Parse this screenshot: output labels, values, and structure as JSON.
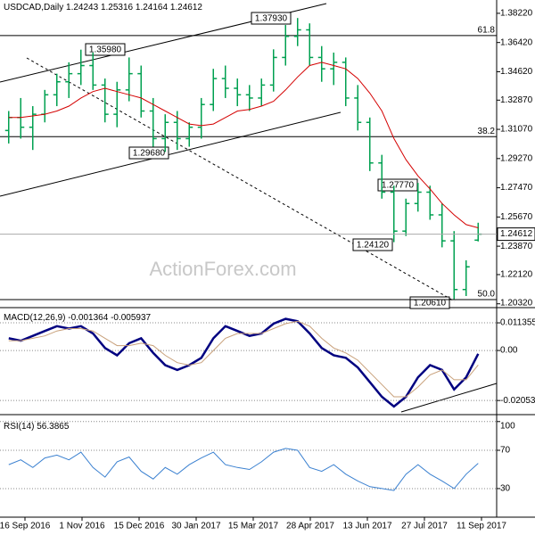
{
  "chart_data": [
    {
      "type": "ohlc",
      "title": "USDCAD,Daily",
      "color": "#00a050",
      "open": [
        1.31,
        1.318,
        1.312,
        1.32,
        1.332,
        1.34,
        1.345,
        1.35,
        1.338,
        1.32,
        1.335,
        1.345,
        1.322,
        1.305,
        1.315,
        1.305,
        1.312,
        1.326,
        1.342,
        1.336,
        1.332,
        1.33,
        1.338,
        1.355,
        1.368,
        1.372,
        1.355,
        1.348,
        1.352,
        1.33,
        1.315,
        1.29,
        1.272,
        1.248,
        1.265,
        1.272,
        1.258,
        1.242,
        1.212,
        1.24243
      ],
      "high": [
        1.322,
        1.33,
        1.325,
        1.335,
        1.345,
        1.352,
        1.3598,
        1.358,
        1.342,
        1.34,
        1.355,
        1.35,
        1.33,
        1.32,
        1.322,
        1.315,
        1.33,
        1.348,
        1.35,
        1.342,
        1.338,
        1.342,
        1.36,
        1.375,
        1.3793,
        1.376,
        1.362,
        1.358,
        1.355,
        1.338,
        1.318,
        1.295,
        1.276,
        1.268,
        1.2777,
        1.276,
        1.265,
        1.248,
        1.23,
        1.25316
      ],
      "low": [
        1.302,
        1.305,
        1.298,
        1.315,
        1.325,
        1.33,
        1.338,
        1.335,
        1.315,
        1.312,
        1.328,
        1.318,
        1.3,
        1.2968,
        1.298,
        1.3,
        1.305,
        1.322,
        1.33,
        1.325,
        1.322,
        1.325,
        1.334,
        1.35,
        1.362,
        1.35,
        1.34,
        1.338,
        1.325,
        1.31,
        1.285,
        1.268,
        1.2412,
        1.245,
        1.26,
        1.255,
        1.238,
        1.2061,
        1.208,
        1.24164
      ],
      "close": [
        1.318,
        1.312,
        1.32,
        1.332,
        1.34,
        1.345,
        1.35,
        1.338,
        1.32,
        1.335,
        1.345,
        1.322,
        1.305,
        1.315,
        1.305,
        1.312,
        1.326,
        1.342,
        1.336,
        1.332,
        1.33,
        1.338,
        1.355,
        1.368,
        1.372,
        1.355,
        1.348,
        1.352,
        1.33,
        1.315,
        1.29,
        1.272,
        1.248,
        1.265,
        1.272,
        1.258,
        1.242,
        1.212,
        1.226,
        1.24612
      ],
      "series": [
        {
          "color": "#d40000",
          "values": [
            1.318,
            1.318,
            1.319,
            1.32,
            1.322,
            1.325,
            1.33,
            1.334,
            1.336,
            1.334,
            1.332,
            1.33,
            1.326,
            1.322,
            1.318,
            1.314,
            1.313,
            1.314,
            1.318,
            1.322,
            1.323,
            1.325,
            1.328,
            1.335,
            1.343,
            1.35,
            1.352,
            1.35,
            1.348,
            1.342,
            1.333,
            1.322,
            1.305,
            1.292,
            1.282,
            1.274,
            1.265,
            1.258,
            1.252,
            1.25
          ]
        }
      ],
      "levels": [
        {
          "value": 1.3685,
          "label": "61.8"
        },
        {
          "value": 1.3062,
          "label": "38.2"
        },
        {
          "value": 1.2058,
          "label": "50.0"
        }
      ],
      "annotations": [
        "1.37930",
        "1.35980",
        "1.29680",
        "1.27770",
        "1.24120",
        "1.20610"
      ],
      "watermark": "ActionForex.com",
      "ylim": [
        1.2025,
        1.3904
      ],
      "yticks": [
        {
          "value": 1.3822,
          "label": "1.38220"
        },
        {
          "value": 1.3642,
          "label": "1.36420"
        },
        {
          "value": 1.3462,
          "label": "1.34620"
        },
        {
          "value": 1.3287,
          "label": "1.32870"
        },
        {
          "value": 1.3107,
          "label": "1.31070"
        },
        {
          "value": 1.2927,
          "label": "1.29270"
        },
        {
          "value": 1.2747,
          "label": "1.27470"
        },
        {
          "value": 1.2567,
          "label": "1.25670"
        },
        {
          "value": 1.2387,
          "label": "1.23870"
        },
        {
          "value": 1.2212,
          "label": "1.22120"
        },
        {
          "value": 1.2032,
          "label": "1.20320"
        }
      ],
      "xtick_labels": [
        "16 Sep 2016",
        "1 Nov 2016",
        "15 Dec 2016",
        "30 Jan 2017",
        "15 Mar 2017",
        "28 Apr 2017",
        "13 Jun 2017",
        "27 Jul 2017",
        "11 Sep 2017"
      ]
    },
    {
      "type": "line",
      "title": "MACD(12,26,9)",
      "series": [
        {
          "color": "#000080",
          "values": [
            0.005,
            0.004,
            0.006,
            0.008,
            0.01,
            0.009,
            0.01,
            0.007,
            0.001,
            -0.002,
            0.003,
            0.005,
            -0.001,
            -0.006,
            -0.008,
            -0.006,
            -0.003,
            0.005,
            0.01,
            0.008,
            0.006,
            0.007,
            0.011,
            0.013,
            0.012,
            0.007,
            0.001,
            -0.002,
            -0.003,
            -0.007,
            -0.013,
            -0.019,
            -0.023,
            -0.019,
            -0.011,
            -0.006,
            -0.008,
            -0.016,
            -0.011,
            -0.001364
          ]
        },
        {
          "color": "#c8a07a",
          "values": [
            0.004,
            0.004,
            0.005,
            0.006,
            0.008,
            0.009,
            0.009,
            0.008,
            0.005,
            0.002,
            0.002,
            0.003,
            0.002,
            -0.002,
            -0.005,
            -0.006,
            -0.005,
            0.0,
            0.005,
            0.007,
            0.007,
            0.007,
            0.009,
            0.011,
            0.012,
            0.01,
            0.005,
            0.001,
            -0.001,
            -0.004,
            -0.009,
            -0.014,
            -0.019,
            -0.019,
            -0.015,
            -0.01,
            -0.008,
            -0.012,
            -0.012,
            -0.005937
          ]
        }
      ],
      "ylim": [
        -0.0245,
        0.0165
      ],
      "yticks": [
        0.011355,
        {
          "value": 0,
          "label": "0.00"
        },
        -0.020531
      ]
    },
    {
      "type": "line",
      "title": "RSI(14)",
      "series": [
        {
          "color": "#3a80d0",
          "values": [
            55,
            60,
            52,
            62,
            65,
            60,
            68,
            52,
            42,
            58,
            63,
            48,
            40,
            52,
            45,
            55,
            62,
            68,
            55,
            52,
            50,
            58,
            68,
            72,
            70,
            52,
            48,
            55,
            45,
            38,
            32,
            30,
            28,
            45,
            55,
            45,
            38,
            30,
            45,
            56.3865
          ]
        }
      ],
      "ylim": [
        2,
        102.6
      ],
      "yticks": [
        100,
        70,
        30
      ]
    }
  ]
}
